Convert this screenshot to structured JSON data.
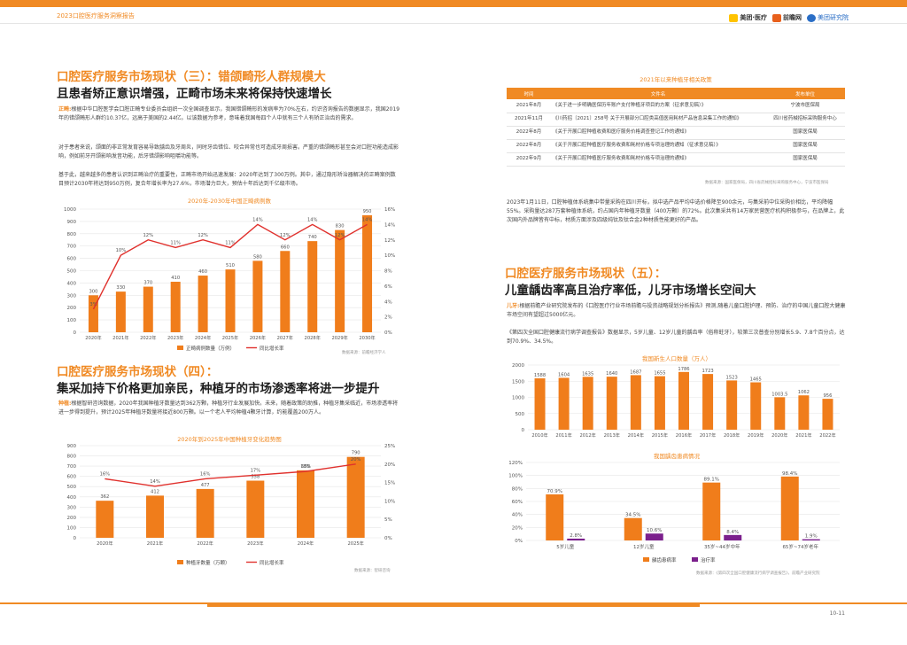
{
  "header": {
    "report": "2023口腔医疗服务洞察报告",
    "logo1": "美团·医疗",
    "logo2": "前瞻网",
    "logo3": "美团研究院"
  },
  "s3": {
    "title1": "口腔医疗服务市场现状（三）：错颌畸形人群规模大",
    "title2": "且患者矫正意识增强，正畸市场未来将保持快速增长",
    "p1_lead": "正畸:",
    "p1": "根据中华口腔医学会口腔正畸专业委员会组织一次全国调查显示，我国错颌畸形的发病率为70%左右，约识咨询报告的数据显示，我国2019年的错颌畸形人群约10.37亿，远高于美国的2.44亿。以该数据为参考，意味着我国每四个人中就有三个人有矫正治齿的需求。",
    "p2": "对于患者来说，颌面的非正常发育容易导致龋齿及牙周炎，同时牙齿错位、咬合异常也可造成牙周损害。严重的错颌畸形甚至会对口腔功能造成影响，例如前牙开颌影响发音功能，后牙错颌影响咀嚼功能等。",
    "p3": "基于此，越来越多的患者认识到正畸治疗的重要性，正畸市场开始迅速发展：2020年达到了300万例。其中，通过隐形矫治器解决的正畸案例数目预计2030年将达到950万例，复合年增长率为27.6%，市场潜力巨大，预估十年后达到千亿级市场。"
  },
  "s4": {
    "title1": "口腔医疗服务市场现状（四）：",
    "title2": "集采加持下价格更加亲民，种植牙的市场渗透率将进一步提升",
    "p1_lead": "种植:",
    "p1": "根据智研咨询数据，2020年我国种植牙数量达到362万颗，种植牙行业发展加快。未来，随着政策的助推，种植牙集采临近，市场渗透率将进一步得到提升，预计2025年种植牙数量将接近800万颗。以一个老人平均种植4颗牙计算，约能覆盖200万人。"
  },
  "table": {
    "title": "2021年以来种植牙相关政策",
    "headers": [
      "时间",
      "文件名",
      "发布单位"
    ],
    "rows": [
      [
        "2021年8月",
        "《关于进一步明确医保历年账户支付种植牙项目的方案（征求意见稿）》",
        "宁波市医保局"
      ],
      [
        "2021年11月",
        "《川药招〔2021〕258号 关于开展部分口腔类高值医用耗材产品信息采集工作的通知》",
        "四川省药械招标采购服务中心"
      ],
      [
        "2022年8月",
        "《关于开展口腔种植收费和医疗服务价格调查登记工作的通知》",
        "国家医保局"
      ],
      [
        "2022年8月",
        "《关于开展口腔种植医疗服务收费和耗材价格专项治理的通知（征求意见稿）》",
        "国家医保局"
      ],
      [
        "2022年9月",
        "《关于开展口腔种植医疗服务收费和耗材价格专项治理的通知》",
        "国家医保局"
      ]
    ],
    "source": "数据来源：国家医保局，四川省药械招标采购服务中心，宁波市医保局"
  },
  "r_para": "2023年1月11日，口腔种植体系统集中带量采购在四川开标，拟中选产品平均中选价格降至900余元，与集采前中位采购价相比，平均降幅55%。采购量达287万套种植体系统，约占国内年种植牙数量（400万颗）的72%。此次集采共有14万家民营医疗机构积极参与，在品牌上，此次国内外品牌皆有中标，材质方面涉及四级纯钛及钛合金2种材质性能更好的产品。",
  "s5": {
    "title1": "口腔医疗服务市场现状（五）：",
    "title2": "儿童龋齿率高且治疗率低，儿牙市场增长空间大",
    "p1_lead": "儿牙:",
    "p1": "根据前瞻产业研究院发布的《口腔医疗行业市场前瞻与投资战略规划分析报告》预测,随着儿童口腔护理、预防、治疗的中国儿童口腔大健康市场空间有望超过5000亿元。",
    "p2": "《第四次全国口腔健康流行病学调查报告》数据显示，5岁儿童、12岁儿童的龋齿率（俗称蛀牙），较第三次普查分别增长5.9、7.8个百分点，达到70.9%、34.5%。"
  },
  "chart_data": [
    {
      "type": "bar",
      "title": "2020年-2030年中国正畸病例数",
      "categories": [
        "2020年",
        "2021年",
        "2022年",
        "2023年",
        "2024年",
        "2025年",
        "2026年",
        "2027年",
        "2028年",
        "2029年",
        "2030年"
      ],
      "series": [
        {
          "name": "正畸病例数量（万例）",
          "values": [
            300,
            330,
            370,
            410,
            460,
            510,
            580,
            660,
            740,
            830,
            950
          ]
        },
        {
          "name": "同比增长率",
          "values": [
            3,
            10,
            12,
            11,
            12,
            11,
            14,
            12,
            14,
            12,
            14
          ],
          "axis": "right",
          "unit": "%"
        }
      ],
      "ylim": [
        0,
        1000
      ],
      "y2lim": [
        0,
        16
      ],
      "yticks": [
        "0",
        "100",
        "200",
        "300",
        "400",
        "500",
        "600",
        "700",
        "800",
        "900",
        "1000"
      ],
      "y2ticks": [
        "0%",
        "2%",
        "4%",
        "6%",
        "8%",
        "10%",
        "12%",
        "14%",
        "16%"
      ],
      "source": "数据来源：前瞻经济学人"
    },
    {
      "type": "bar",
      "title": "2020年到2025年中国种植牙变化趋势图",
      "categories": [
        "2020年",
        "2021年",
        "2022年",
        "2023年",
        "2024年",
        "2025年"
      ],
      "series": [
        {
          "name": "种植牙数量（万颗）",
          "values": [
            362,
            412,
            477,
            558,
            659,
            790
          ]
        },
        {
          "name": "同比增长率",
          "values": [
            16,
            14,
            16,
            17,
            18,
            20
          ],
          "axis": "right",
          "unit": "%"
        }
      ],
      "ylim": [
        0,
        900
      ],
      "y2lim": [
        0,
        25
      ],
      "yticks": [
        "0",
        "100",
        "200",
        "300",
        "400",
        "500",
        "600",
        "700",
        "800",
        "900"
      ],
      "y2ticks": [
        "0%",
        "5%",
        "10%",
        "15%",
        "20%",
        "25%"
      ],
      "source": "数据来源：智研咨询"
    },
    {
      "type": "bar",
      "title": "我国新生人口数量（万人）",
      "categories": [
        "2010年",
        "2011年",
        "2012年",
        "2013年",
        "2014年",
        "2015年",
        "2016年",
        "2017年",
        "2018年",
        "2019年",
        "2020年",
        "2021年",
        "2022年"
      ],
      "series": [
        {
          "name": "",
          "values": [
            1588,
            1604,
            1635,
            1640,
            1687,
            1655,
            1786,
            1723,
            1523,
            1465,
            1003.5,
            1062,
            956
          ]
        }
      ],
      "ylim": [
        0,
        2000
      ],
      "yticks": [
        "0",
        "500",
        "1000",
        "1500",
        "2000"
      ]
    },
    {
      "type": "bar",
      "title": "我国龋齿患病情况",
      "categories": [
        "5岁儿童",
        "12岁儿童",
        "35岁~44岁中年",
        "65岁~74岁老年"
      ],
      "series": [
        {
          "name": "龋齿患病率",
          "values": [
            70.9,
            34.5,
            89.1,
            98.4
          ],
          "labels": [
            "70.9%",
            "34.5%",
            "89.1%",
            "98.4%"
          ]
        },
        {
          "name": "治疗率",
          "values": [
            2.8,
            10.6,
            8.4,
            1.9
          ],
          "labels": [
            "2.8%",
            "10.6%",
            "8.4%",
            "1.9%"
          ]
        }
      ],
      "ylim": [
        0,
        120
      ],
      "yticks": [
        "0%",
        "20%",
        "40%",
        "60%",
        "80%",
        "100%",
        "120%"
      ],
      "source": "数据来源：《第四次全国口腔健康流行病学调查报告》，前瞻产业研究院"
    }
  ],
  "footer": {
    "page": "10-11"
  },
  "colors": {
    "accent": "#f08a24",
    "bar": "#f07d1b",
    "line": "#e0312d",
    "purple": "#7b1f8c"
  }
}
